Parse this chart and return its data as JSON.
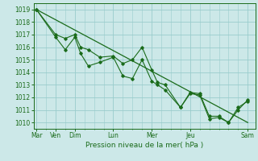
{
  "xlabel": "Pression niveau de la mer( hPa )",
  "bg_color": "#cce8e8",
  "grid_color": "#99cccc",
  "line_color": "#1a6b1a",
  "ylim": [
    1009.5,
    1019.5
  ],
  "yticks": [
    1010,
    1011,
    1012,
    1013,
    1014,
    1015,
    1016,
    1017,
    1018,
    1019
  ],
  "xtick_major_positions": [
    0,
    1,
    2,
    4,
    6,
    8,
    11
  ],
  "xtick_major_labels": [
    "Mar",
    "Ven",
    "Dim",
    "Lun",
    "Mer",
    "Jeu",
    "Sam"
  ],
  "xlim": [
    -0.15,
    11.4
  ],
  "trend_x": [
    0,
    11
  ],
  "trend_y": [
    1019,
    1010
  ],
  "line1_x": [
    0,
    1,
    1.5,
    2,
    2.3,
    2.7,
    3.3,
    4.0,
    4.5,
    5.0,
    5.5,
    6.0,
    6.3,
    6.7,
    7.5,
    8.0,
    8.5,
    9.0,
    9.5,
    10.0,
    10.5,
    11.0
  ],
  "line1_y": [
    1019,
    1017,
    1016.7,
    1017,
    1016,
    1015.8,
    1015.2,
    1015.3,
    1014.7,
    1015.0,
    1016.0,
    1014.2,
    1013.2,
    1013.0,
    1011.2,
    1012.4,
    1012.3,
    1010.5,
    1010.5,
    1010.0,
    1011.0,
    1011.8
  ],
  "line2_x": [
    0,
    1.0,
    1.5,
    2.0,
    2.3,
    2.7,
    3.3,
    4.0,
    4.5,
    5.0,
    5.5,
    6.0,
    6.3,
    6.7,
    7.5,
    8.0,
    8.5,
    9.0,
    9.5,
    10.0,
    10.5,
    11.0
  ],
  "line2_y": [
    1019,
    1016.8,
    1015.8,
    1016.8,
    1015.5,
    1014.5,
    1014.8,
    1015.2,
    1013.7,
    1013.5,
    1015.0,
    1013.3,
    1013.0,
    1012.6,
    1011.2,
    1012.3,
    1012.2,
    1010.3,
    1010.4,
    1010.0,
    1011.2,
    1011.7
  ]
}
